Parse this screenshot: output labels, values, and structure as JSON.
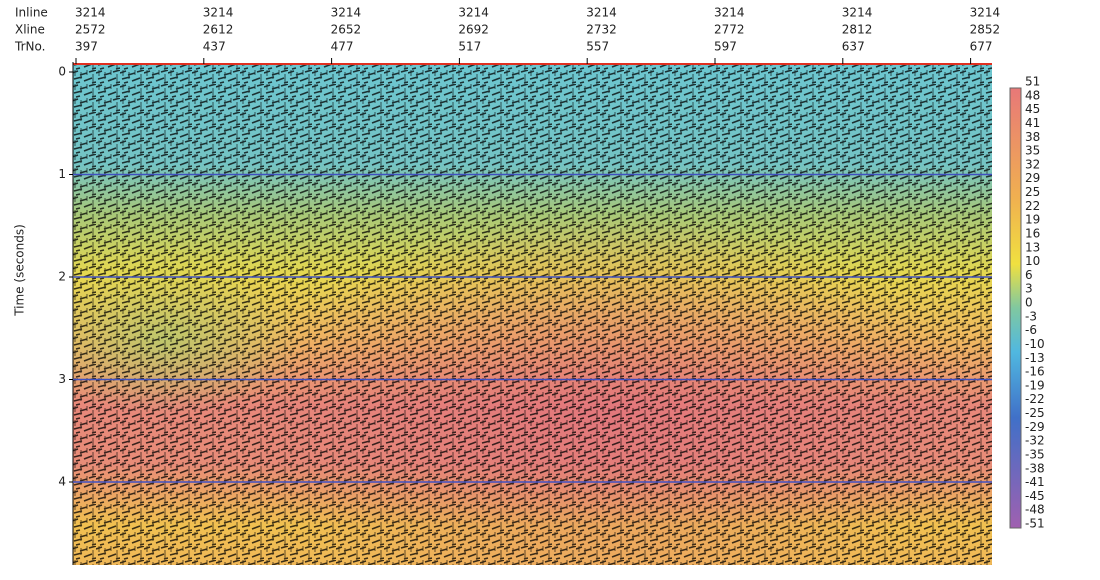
{
  "header": {
    "row_labels": [
      "Inline",
      "Xline",
      "TrNo."
    ],
    "columns": [
      {
        "inline": 3214,
        "xline": 2572,
        "trno": 397
      },
      {
        "inline": 3214,
        "xline": 2612,
        "trno": 437
      },
      {
        "inline": 3214,
        "xline": 2652,
        "trno": 477
      },
      {
        "inline": 3214,
        "xline": 2692,
        "trno": 517
      },
      {
        "inline": 3214,
        "xline": 2732,
        "trno": 557
      },
      {
        "inline": 3214,
        "xline": 2772,
        "trno": 597
      },
      {
        "inline": 3214,
        "xline": 2812,
        "trno": 637
      },
      {
        "inline": 3214,
        "xline": 2852,
        "trno": 677
      }
    ]
  },
  "y_axis": {
    "label": "Time (seconds)",
    "ticks": [
      0,
      1,
      2,
      3,
      4
    ]
  },
  "colorbar": {
    "labels": [
      51,
      48,
      45,
      41,
      38,
      35,
      32,
      29,
      25,
      22,
      19,
      16,
      13,
      10,
      6,
      3,
      0,
      -3,
      -6,
      -10,
      -13,
      -16,
      -19,
      -22,
      -25,
      -29,
      -32,
      -35,
      -38,
      -41,
      -45,
      -48,
      -51
    ]
  }
}
